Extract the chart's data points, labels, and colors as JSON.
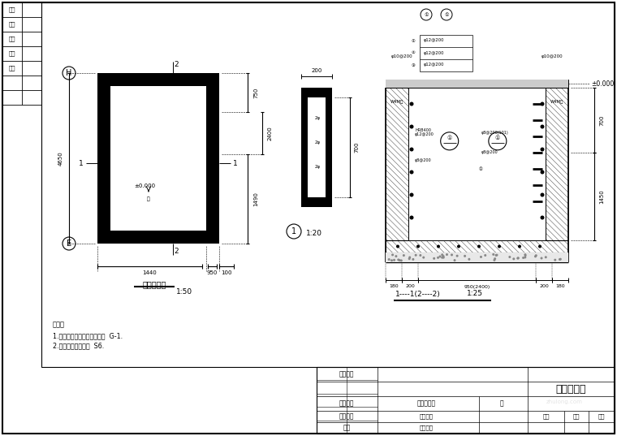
{
  "bg_color": "#ffffff",
  "title": "集水井大样",
  "plan_label": "集水井平面",
  "scale_plan": "1:50",
  "scale_s1": "1:20",
  "scale_s2": "1:25",
  "left_labels": [
    "版别",
    "工况",
    "校核",
    "审核",
    "批准"
  ],
  "notes_line1": "说明：",
  "notes_line2": "1.混凝土强度等级见结构说明  G-1.",
  "notes_line3": "2.其他说明见总说明  S6.",
  "tb_col1": [
    "修改内容",
    "",
    "",
    "工程名称",
    "",
    "图纸名称",
    "比例",
    "校对单位"
  ],
  "tb_title": "集水井大样",
  "tb_sub1": "工程总说明",
  "tb_sub2": "阶"
}
